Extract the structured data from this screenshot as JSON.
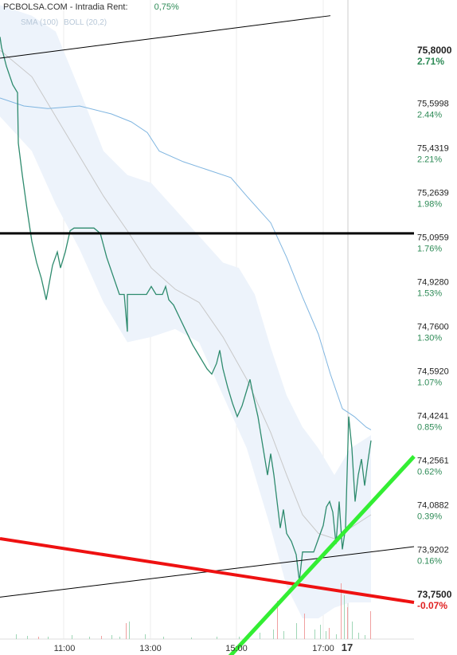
{
  "header": {
    "site": "PCBOLSA.COM",
    "sep": "-",
    "mode": "Intradia",
    "rent_label": "Rent:",
    "rent_value": "0,75%"
  },
  "legend": {
    "sma": "SMA (100)",
    "boll": "BOLL (20,2)"
  },
  "colors": {
    "price": "#2e8b6e",
    "sma": "#7fb5e0",
    "boll_band": "#edf3fb",
    "boll_mid": "#c8c8c8",
    "resistance": "#000000",
    "support_red": "#ee1111",
    "trend_green": "#33ee33",
    "pct_positive": "#2e8b57",
    "pct_negative": "#e02020",
    "volume_up": "#9fd6b6",
    "volume_down": "#f0a0a0"
  },
  "chart_data": {
    "type": "line",
    "title": "",
    "ylim": [
      73.66,
      75.96
    ],
    "x_ticks": [
      "11:00",
      "13:00",
      "15:00",
      "17:00",
      "17"
    ],
    "y_ticks": [
      {
        "price": "75,8000",
        "pct": "2.71%",
        "value": 75.8,
        "highlight": true
      },
      {
        "price": "75,5998",
        "pct": "2.44%",
        "value": 75.5998
      },
      {
        "price": "75,4319",
        "pct": "2.21%",
        "value": 75.4319
      },
      {
        "price": "75,2639",
        "pct": "1.98%",
        "value": 75.2639
      },
      {
        "price": "75,0959",
        "pct": "1.76%",
        "value": 75.0959
      },
      {
        "price": "74,9280",
        "pct": "1.53%",
        "value": 74.928
      },
      {
        "price": "74,7600",
        "pct": "1.30%",
        "value": 74.76
      },
      {
        "price": "74,5920",
        "pct": "1.07%",
        "value": 74.592
      },
      {
        "price": "74,4241",
        "pct": "0.85%",
        "value": 74.4241
      },
      {
        "price": "74,2561",
        "pct": "0.62%",
        "value": 74.2561
      },
      {
        "price": "74,0882",
        "pct": "0.39%",
        "value": 74.0882
      },
      {
        "price": "73,9202",
        "pct": "0.16%",
        "value": 73.9202
      },
      {
        "price": "73,7500",
        "pct": "-0.07%",
        "value": 73.75,
        "highlight": true
      }
    ],
    "price_series": [
      [
        0,
        75.85
      ],
      [
        2,
        75.81
      ],
      [
        8,
        75.74
      ],
      [
        16,
        75.67
      ],
      [
        22,
        75.64
      ],
      [
        23,
        75.45
      ],
      [
        28,
        75.33
      ],
      [
        34,
        75.2
      ],
      [
        40,
        75.08
      ],
      [
        46,
        75.0
      ],
      [
        52,
        74.94
      ],
      [
        58,
        74.86
      ],
      [
        66,
        74.99
      ],
      [
        72,
        75.04
      ],
      [
        76,
        74.98
      ],
      [
        82,
        75.04
      ],
      [
        88,
        75.12
      ],
      [
        93,
        75.13
      ],
      [
        100,
        75.13
      ],
      [
        108,
        75.13
      ],
      [
        118,
        75.13
      ],
      [
        126,
        75.11
      ],
      [
        134,
        75.02
      ],
      [
        142,
        74.95
      ],
      [
        150,
        74.88
      ],
      [
        156,
        74.88
      ],
      [
        160,
        74.74
      ],
      [
        160,
        74.88
      ],
      [
        168,
        74.88
      ],
      [
        175,
        74.88
      ],
      [
        184,
        74.88
      ],
      [
        190,
        74.91
      ],
      [
        196,
        74.88
      ],
      [
        204,
        74.88
      ],
      [
        208,
        74.91
      ],
      [
        212,
        74.86
      ],
      [
        218,
        74.84
      ],
      [
        226,
        74.79
      ],
      [
        234,
        74.74
      ],
      [
        242,
        74.69
      ],
      [
        252,
        74.64
      ],
      [
        260,
        74.6
      ],
      [
        266,
        74.58
      ],
      [
        272,
        74.62
      ],
      [
        276,
        74.67
      ],
      [
        280,
        74.6
      ],
      [
        286,
        74.53
      ],
      [
        292,
        74.47
      ],
      [
        298,
        74.42
      ],
      [
        304,
        74.46
      ],
      [
        310,
        74.52
      ],
      [
        314,
        74.56
      ],
      [
        318,
        74.5
      ],
      [
        324,
        74.42
      ],
      [
        330,
        74.31
      ],
      [
        336,
        74.2
      ],
      [
        340,
        74.28
      ],
      [
        344,
        74.2
      ],
      [
        348,
        74.1
      ],
      [
        352,
        74.0
      ],
      [
        356,
        74.07
      ],
      [
        360,
        73.98
      ],
      [
        366,
        73.95
      ],
      [
        372,
        73.9
      ],
      [
        376,
        73.8
      ],
      [
        380,
        73.91
      ],
      [
        388,
        73.91
      ],
      [
        394,
        73.91
      ],
      [
        400,
        73.96
      ],
      [
        406,
        74.01
      ],
      [
        410,
        74.08
      ],
      [
        414,
        74.1
      ],
      [
        418,
        74.06
      ],
      [
        422,
        73.94
      ],
      [
        426,
        74.1
      ],
      [
        430,
        73.92
      ],
      [
        434,
        74.0
      ],
      [
        438,
        74.42
      ],
      [
        442,
        74.3
      ],
      [
        446,
        74.1
      ],
      [
        450,
        74.2
      ],
      [
        454,
        74.26
      ],
      [
        458,
        74.16
      ],
      [
        462,
        74.25
      ],
      [
        466,
        74.33
      ]
    ],
    "sma_series": [
      [
        0,
        75.62
      ],
      [
        30,
        75.59
      ],
      [
        60,
        75.58
      ],
      [
        100,
        75.59
      ],
      [
        140,
        75.56
      ],
      [
        165,
        75.53
      ],
      [
        185,
        75.49
      ],
      [
        200,
        75.42
      ],
      [
        230,
        75.38
      ],
      [
        260,
        75.35
      ],
      [
        290,
        75.32
      ],
      [
        310,
        75.25
      ],
      [
        340,
        75.15
      ],
      [
        360,
        75.02
      ],
      [
        380,
        74.87
      ],
      [
        400,
        74.73
      ],
      [
        415,
        74.58
      ],
      [
        430,
        74.45
      ],
      [
        445,
        74.42
      ],
      [
        460,
        74.38
      ],
      [
        466,
        74.37
      ]
    ],
    "boll_mid_series": [
      [
        0,
        75.8
      ],
      [
        40,
        75.7
      ],
      [
        70,
        75.55
      ],
      [
        100,
        75.4
      ],
      [
        130,
        75.25
      ],
      [
        160,
        75.12
      ],
      [
        190,
        74.98
      ],
      [
        220,
        74.9
      ],
      [
        250,
        74.85
      ],
      [
        280,
        74.72
      ],
      [
        310,
        74.56
      ],
      [
        340,
        74.36
      ],
      [
        360,
        74.2
      ],
      [
        380,
        74.05
      ],
      [
        400,
        73.98
      ],
      [
        420,
        73.96
      ],
      [
        440,
        74.0
      ],
      [
        466,
        74.05
      ]
    ],
    "boll_upper_series": [
      [
        0,
        75.97
      ],
      [
        40,
        75.93
      ],
      [
        70,
        75.87
      ],
      [
        100,
        75.65
      ],
      [
        130,
        75.42
      ],
      [
        160,
        75.33
      ],
      [
        190,
        75.3
      ],
      [
        220,
        75.2
      ],
      [
        250,
        75.1
      ],
      [
        280,
        75.0
      ],
      [
        300,
        74.98
      ],
      [
        320,
        74.88
      ],
      [
        340,
        74.68
      ],
      [
        360,
        74.5
      ],
      [
        380,
        74.38
      ],
      [
        400,
        74.3
      ],
      [
        420,
        74.2
      ],
      [
        440,
        74.3
      ],
      [
        466,
        74.35
      ]
    ],
    "boll_lower_series": [
      [
        0,
        75.55
      ],
      [
        40,
        75.42
      ],
      [
        70,
        75.22
      ],
      [
        100,
        75.05
      ],
      [
        130,
        74.85
      ],
      [
        160,
        74.7
      ],
      [
        190,
        74.72
      ],
      [
        220,
        74.75
      ],
      [
        250,
        74.7
      ],
      [
        280,
        74.5
      ],
      [
        310,
        74.3
      ],
      [
        340,
        74.0
      ],
      [
        360,
        73.78
      ],
      [
        380,
        73.66
      ],
      [
        400,
        73.66
      ],
      [
        420,
        73.7
      ],
      [
        440,
        73.72
      ],
      [
        466,
        73.72
      ]
    ],
    "lines": [
      {
        "name": "resistance",
        "from": [
          0,
          75.11
        ],
        "to": [
          520,
          75.11
        ]
      },
      {
        "name": "upper-channel",
        "from": [
          0,
          75.77
        ],
        "to": [
          415,
          75.93
        ]
      },
      {
        "name": "lower-channel",
        "from": [
          0,
          73.74
        ],
        "to": [
          520,
          73.93
        ]
      },
      {
        "name": "red-support",
        "from": [
          0,
          73.96
        ],
        "to": [
          520,
          73.72
        ]
      },
      {
        "name": "green-trend",
        "from": [
          265,
          73.44
        ],
        "to": [
          520,
          74.27
        ]
      }
    ],
    "volume_bars": [
      [
        20,
        6,
        "up"
      ],
      [
        34,
        4,
        "up"
      ],
      [
        48,
        3,
        "down"
      ],
      [
        60,
        3,
        "up"
      ],
      [
        90,
        5,
        "up"
      ],
      [
        112,
        3,
        "up"
      ],
      [
        127,
        4,
        "down"
      ],
      [
        140,
        5,
        "up"
      ],
      [
        150,
        3,
        "up"
      ],
      [
        158,
        20,
        "down"
      ],
      [
        162,
        22,
        "up"
      ],
      [
        182,
        6,
        "up"
      ],
      [
        205,
        3,
        "up"
      ],
      [
        240,
        2,
        "up"
      ],
      [
        272,
        3,
        "up"
      ],
      [
        300,
        3,
        "up"
      ],
      [
        326,
        8,
        "up"
      ],
      [
        343,
        12,
        "up"
      ],
      [
        348,
        48,
        "down"
      ],
      [
        356,
        10,
        "up"
      ],
      [
        372,
        20,
        "up"
      ],
      [
        382,
        32,
        "down"
      ],
      [
        395,
        12,
        "up"
      ],
      [
        402,
        18,
        "up"
      ],
      [
        409,
        10,
        "up"
      ],
      [
        413,
        14,
        "down"
      ],
      [
        422,
        6,
        "up"
      ],
      [
        428,
        70,
        "down"
      ],
      [
        432,
        55,
        "up"
      ],
      [
        436,
        40,
        "down"
      ],
      [
        442,
        22,
        "up"
      ],
      [
        450,
        8,
        "up"
      ],
      [
        458,
        5,
        "up"
      ],
      [
        465,
        35,
        "down"
      ]
    ]
  }
}
